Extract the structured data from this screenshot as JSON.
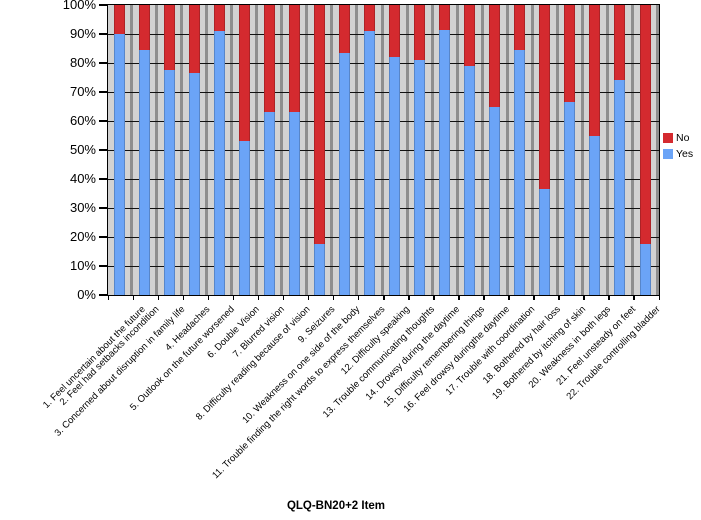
{
  "chart_data": {
    "type": "bar",
    "subtype": "stacked-100-percent-column",
    "xlabel": "QLQ-BN20+2 Item",
    "ylabel": "",
    "ylim": [
      0,
      100
    ],
    "ytick_step": 10,
    "ytick_labels_top_down": [
      "100%",
      "90%",
      "80%",
      "70%",
      "60%",
      "50%",
      "40%",
      "30%",
      "20%",
      "10%",
      "0%"
    ],
    "grid": true,
    "legend_position": "right",
    "plot_background": "#d2d2d2",
    "column_divider_color": "#8e8e8e",
    "categories": [
      "1. Feel uncertain about the future",
      "2. Feel had setbacks incondition",
      "3. Concerned about disruption in family life",
      "4. Headaches",
      "5. Outlook on the future worsened",
      "6. Double Vision",
      "7. Blurred vision",
      "8. Difficulty reading because of vision",
      "9. Seizures",
      "10. Weakness on one side of the body",
      "11. Trouble finding the right words to express themselves",
      "12. Difficulty speaking",
      "13. Trouble communicating thoughts",
      "14. Drowsy during the daytime",
      "15. Difficulty remembering things",
      "16. Feel drowsy duringthe daytime",
      "17. Trouble with coordination",
      "18. Bothered by hair loss",
      "19. Bothered by itching of skin",
      "20. Weakness in both legs",
      "21. Feel unsteady on feet",
      "22. Trouble controlling bladder"
    ],
    "series": [
      {
        "name": "No",
        "color": "#d42a2f",
        "values": [
          10,
          15.5,
          22.5,
          23.5,
          9,
          47,
          37,
          37,
          82.5,
          16.5,
          9,
          18,
          19,
          8.5,
          21,
          35,
          15.5,
          63.5,
          33.5,
          45,
          26,
          82.5
        ]
      },
      {
        "name": "Yes",
        "color": "#6ba4f7",
        "values": [
          90,
          84.5,
          77.5,
          76.5,
          91,
          53,
          63,
          63,
          17.5,
          83.5,
          91,
          82,
          81,
          91.5,
          79,
          65,
          84.5,
          36.5,
          66.5,
          55,
          74,
          17.5
        ]
      }
    ]
  },
  "legend": {
    "items": [
      {
        "label": "No",
        "color": "#d42a2f"
      },
      {
        "label": "Yes",
        "color": "#6ba4f7"
      }
    ]
  }
}
